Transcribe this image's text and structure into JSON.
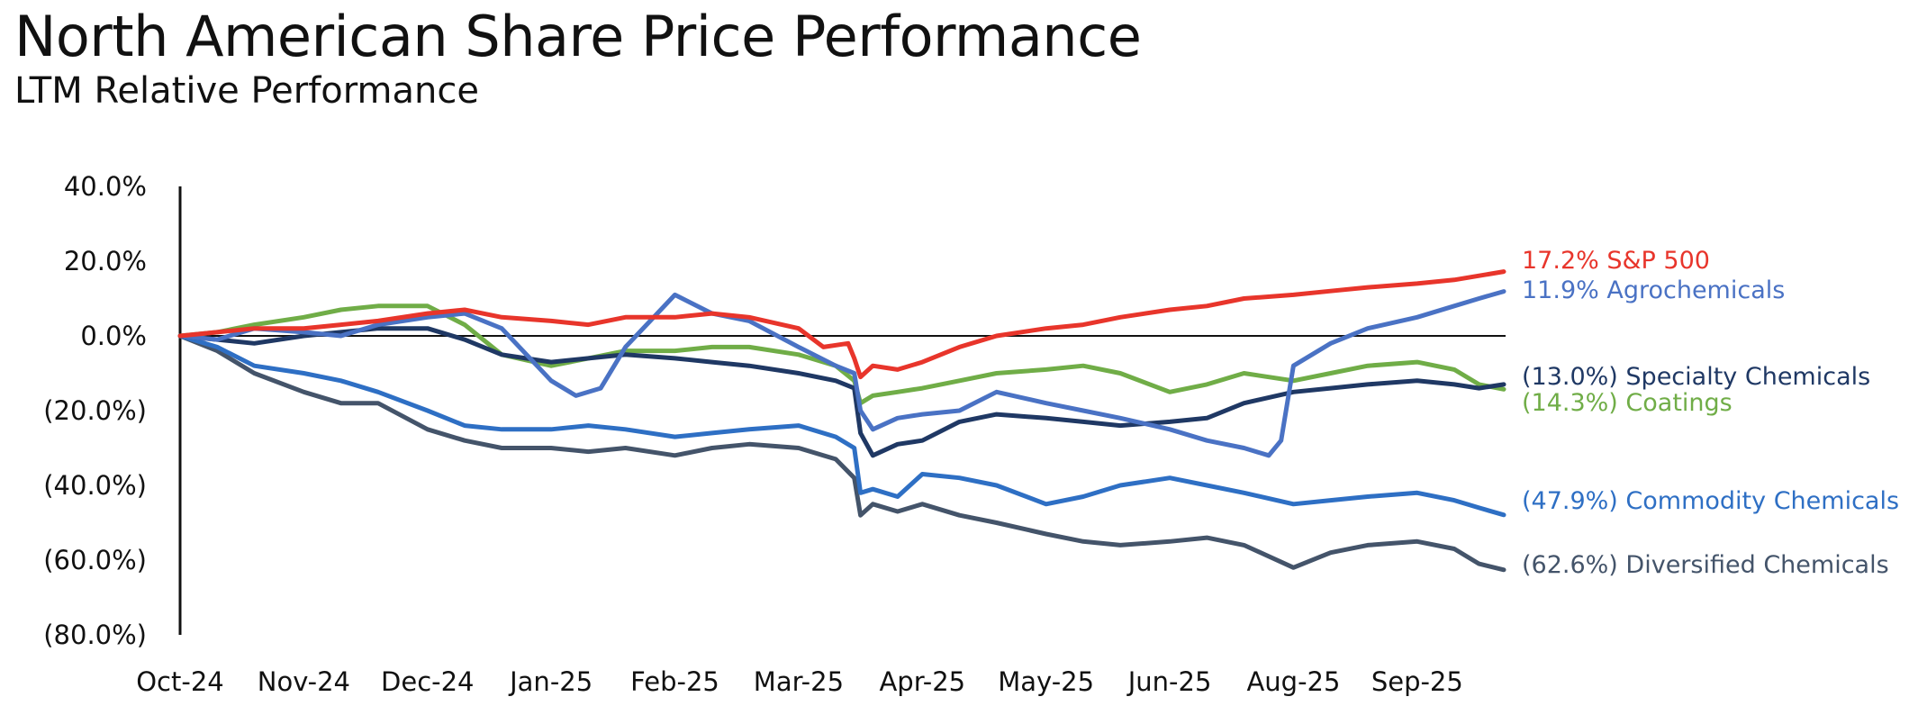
{
  "header": {
    "title": "North American Share Price Performance",
    "subtitle": "LTM Relative Performance"
  },
  "chart_data": {
    "type": "line",
    "title": "North American Share Price Performance",
    "subtitle": "LTM Relative Performance",
    "xlabel": "",
    "ylabel": "",
    "ylim": [
      -80,
      40
    ],
    "x_tick_labels": [
      "Oct-24",
      "Nov-24",
      "Dec-24",
      "Jan-25",
      "Feb-25",
      "Mar-25",
      "Apr-25",
      "May-25",
      "Jun-25",
      "Aug-25",
      "Sep-25"
    ],
    "y_ticks": [
      40,
      20,
      0,
      -20,
      -40,
      -60,
      -80
    ],
    "y_tick_labels": [
      "40.0%",
      "20.0%",
      "0.0%",
      "(20.0%)",
      "(40.0%)",
      "(60.0%)",
      "(80.0%)"
    ],
    "zero_line": true,
    "legend_position": "right",
    "series": [
      {
        "name": "S&P 500",
        "label": "17.2% S&P 500",
        "color": "#E8352B",
        "x": [
          0,
          0.3,
          0.6,
          1,
          1.3,
          1.6,
          2,
          2.3,
          2.6,
          3,
          3.3,
          3.6,
          4,
          4.3,
          4.6,
          5,
          5.2,
          5.4,
          5.45,
          5.5,
          5.6,
          5.8,
          6,
          6.3,
          6.6,
          7,
          7.3,
          7.6,
          8,
          8.3,
          8.6,
          9,
          9.3,
          9.6,
          10,
          10.3,
          10.7
        ],
        "values": [
          0,
          1,
          2,
          2,
          3,
          4,
          6,
          7,
          5,
          4,
          3,
          5,
          5,
          6,
          5,
          2,
          -3,
          -2,
          -6,
          -11,
          -8,
          -9,
          -7,
          -3,
          0,
          2,
          3,
          5,
          7,
          8,
          10,
          11,
          12,
          13,
          14,
          15,
          17.2
        ]
      },
      {
        "name": "Agrochemicals",
        "label": "11.9% Agrochemicals",
        "color": "#4A72C4",
        "x": [
          0,
          0.3,
          0.6,
          1,
          1.3,
          1.6,
          2,
          2.3,
          2.6,
          3,
          3.2,
          3.4,
          3.6,
          3.8,
          4,
          4.3,
          4.6,
          5,
          5.3,
          5.45,
          5.5,
          5.6,
          5.8,
          6,
          6.3,
          6.6,
          7,
          7.3,
          7.6,
          8,
          8.3,
          8.6,
          8.8,
          8.9,
          9,
          9.3,
          9.6,
          10,
          10.3,
          10.5,
          10.7
        ],
        "values": [
          0,
          -1,
          2,
          1,
          0,
          3,
          5,
          6,
          2,
          -12,
          -16,
          -14,
          -3,
          4,
          11,
          6,
          4,
          -3,
          -8,
          -10,
          -20,
          -25,
          -22,
          -21,
          -20,
          -15,
          -18,
          -20,
          -22,
          -25,
          -28,
          -30,
          -32,
          -28,
          -8,
          -2,
          2,
          5,
          8,
          10,
          11.9
        ]
      },
      {
        "name": "Specialty Chemicals",
        "label": "(13.0%) Specialty Chemicals",
        "color": "#1F3864",
        "x": [
          0,
          0.3,
          0.6,
          1,
          1.3,
          1.6,
          2,
          2.3,
          2.6,
          3,
          3.3,
          3.6,
          4,
          4.3,
          4.6,
          5,
          5.3,
          5.45,
          5.5,
          5.6,
          5.8,
          6,
          6.3,
          6.6,
          7,
          7.3,
          7.6,
          8,
          8.3,
          8.6,
          9,
          9.3,
          9.6,
          10,
          10.3,
          10.5,
          10.7
        ],
        "values": [
          0,
          -1,
          -2,
          0,
          1,
          2,
          2,
          -1,
          -5,
          -7,
          -6,
          -5,
          -6,
          -7,
          -8,
          -10,
          -12,
          -14,
          -26,
          -32,
          -29,
          -28,
          -23,
          -21,
          -22,
          -23,
          -24,
          -23,
          -22,
          -18,
          -15,
          -14,
          -13,
          -12,
          -13,
          -14,
          -13
        ]
      },
      {
        "name": "Coatings",
        "label": "(14.3%) Coatings",
        "color": "#70AD47",
        "x": [
          0,
          0.3,
          0.6,
          1,
          1.3,
          1.6,
          2,
          2.3,
          2.6,
          3,
          3.3,
          3.6,
          4,
          4.3,
          4.6,
          5,
          5.3,
          5.45,
          5.5,
          5.6,
          5.8,
          6,
          6.3,
          6.6,
          7,
          7.3,
          7.6,
          8,
          8.3,
          8.6,
          9,
          9.3,
          9.6,
          10,
          10.3,
          10.5,
          10.7
        ],
        "values": [
          0,
          1,
          3,
          5,
          7,
          8,
          8,
          3,
          -5,
          -8,
          -6,
          -4,
          -4,
          -3,
          -3,
          -5,
          -8,
          -12,
          -18,
          -16,
          -15,
          -14,
          -12,
          -10,
          -9,
          -8,
          -10,
          -15,
          -13,
          -10,
          -12,
          -10,
          -8,
          -7,
          -9,
          -13,
          -14.3
        ]
      },
      {
        "name": "Commodity Chemicals",
        "label": "(47.9%) Commodity Chemicals",
        "color": "#2E6FC4",
        "x": [
          0,
          0.3,
          0.6,
          1,
          1.3,
          1.6,
          2,
          2.3,
          2.6,
          3,
          3.3,
          3.6,
          4,
          4.3,
          4.6,
          5,
          5.3,
          5.45,
          5.5,
          5.6,
          5.8,
          6,
          6.3,
          6.6,
          7,
          7.3,
          7.6,
          8,
          8.3,
          8.6,
          9,
          9.3,
          9.6,
          10,
          10.3,
          10.5,
          10.7
        ],
        "values": [
          0,
          -3,
          -8,
          -10,
          -12,
          -15,
          -20,
          -24,
          -25,
          -25,
          -24,
          -25,
          -27,
          -26,
          -25,
          -24,
          -27,
          -30,
          -42,
          -41,
          -43,
          -37,
          -38,
          -40,
          -45,
          -43,
          -40,
          -38,
          -40,
          -42,
          -45,
          -44,
          -43,
          -42,
          -44,
          -46,
          -47.9
        ]
      },
      {
        "name": "Diversified Chemicals",
        "label": "(62.6%) Diversified Chemicals",
        "color": "#44546A",
        "x": [
          0,
          0.3,
          0.6,
          1,
          1.3,
          1.6,
          2,
          2.3,
          2.6,
          3,
          3.3,
          3.6,
          4,
          4.3,
          4.6,
          5,
          5.3,
          5.45,
          5.5,
          5.6,
          5.8,
          6,
          6.3,
          6.6,
          7,
          7.3,
          7.6,
          8,
          8.3,
          8.6,
          9,
          9.3,
          9.6,
          10,
          10.3,
          10.5,
          10.7
        ],
        "values": [
          0,
          -4,
          -10,
          -15,
          -18,
          -18,
          -25,
          -28,
          -30,
          -30,
          -31,
          -30,
          -32,
          -30,
          -29,
          -30,
          -33,
          -38,
          -48,
          -45,
          -47,
          -45,
          -48,
          -50,
          -53,
          -55,
          -56,
          -55,
          -54,
          -56,
          -62,
          -58,
          -56,
          -55,
          -57,
          -61,
          -62.6
        ]
      }
    ]
  }
}
